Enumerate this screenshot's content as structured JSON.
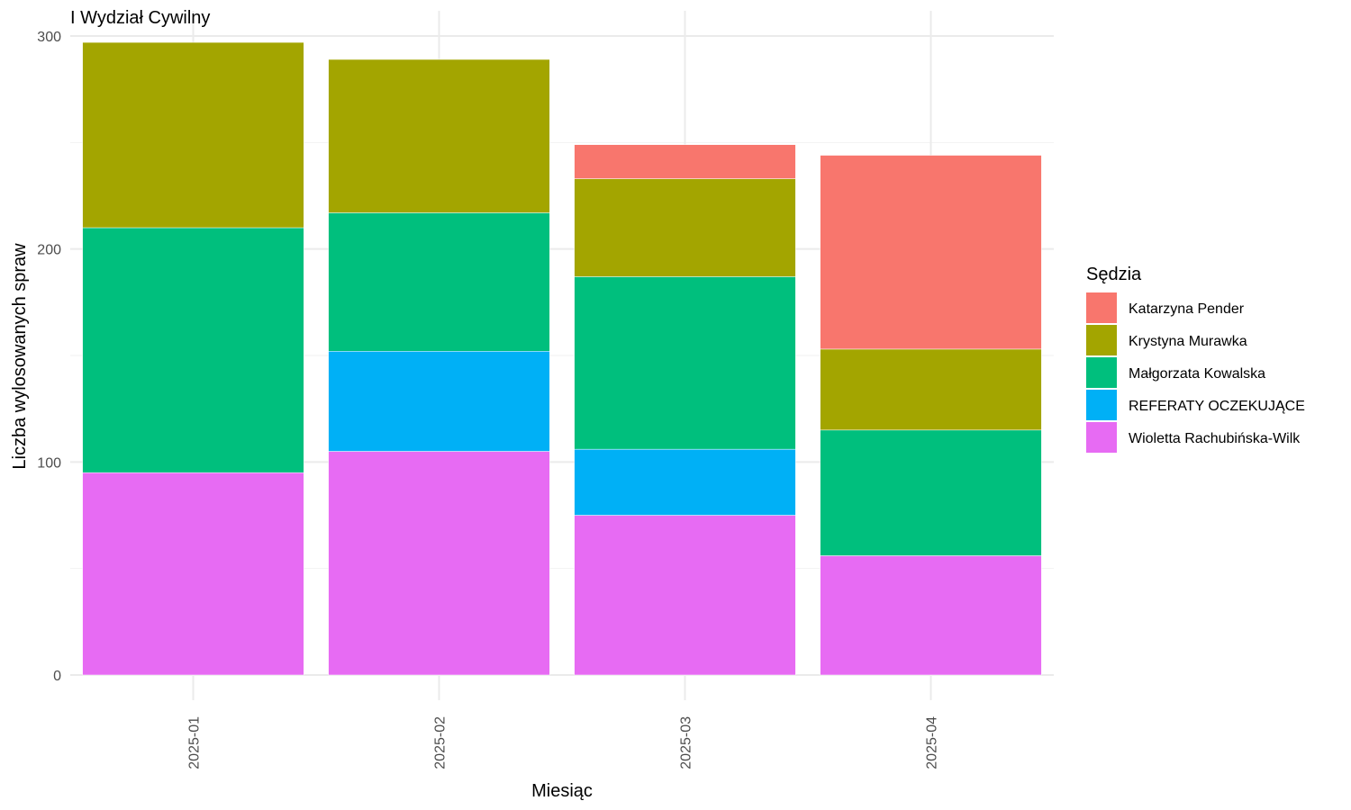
{
  "chart_data": {
    "type": "bar",
    "stacked": true,
    "title": "I Wydział Cywilny",
    "xlabel": "Miesiąc",
    "ylabel": "Liczba wylosowanych spraw",
    "categories": [
      "2025-01",
      "2025-02",
      "2025-03",
      "2025-04"
    ],
    "yticks": [
      0,
      100,
      200,
      300
    ],
    "ylim": [
      0,
      300
    ],
    "grid": true,
    "legend_position": "right",
    "legend_title": "Sędzia",
    "series": [
      {
        "name": "Wioletta Rachubińska-Wilk",
        "color": "#E76BF3",
        "values": [
          95,
          105,
          75,
          56
        ]
      },
      {
        "name": "REFERATY OCZEKUJĄCE",
        "color": "#00B0F6",
        "values": [
          0,
          47,
          31,
          0
        ]
      },
      {
        "name": "Małgorzata Kowalska",
        "color": "#00BF7D",
        "values": [
          115,
          65,
          81,
          59
        ]
      },
      {
        "name": "Krystyna Murawka",
        "color": "#A3A500",
        "values": [
          87,
          72,
          46,
          38
        ]
      },
      {
        "name": "Katarzyna Pender",
        "color": "#F8766D",
        "values": [
          0,
          0,
          16,
          91
        ]
      }
    ],
    "legend_order": [
      "Katarzyna Pender",
      "Krystyna Murawka",
      "Małgorzata Kowalska",
      "REFERATY OCZEKUJĄCE",
      "Wioletta Rachubińska-Wilk"
    ]
  }
}
